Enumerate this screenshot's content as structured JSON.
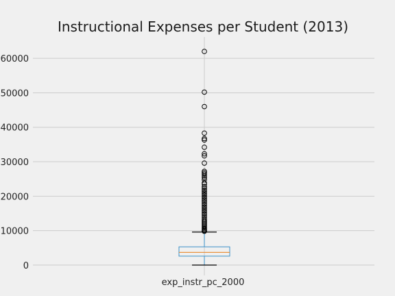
{
  "chart_data": {
    "type": "box",
    "title": "Instructional Expenses per Student (2013)",
    "categories": [
      "exp_instr_pc_2000"
    ],
    "ylim": [
      -3000,
      65000
    ],
    "yticks": [
      0,
      10000,
      20000,
      30000,
      40000,
      50000,
      60000
    ],
    "ytick_labels": [
      "0",
      "10000",
      "20000",
      "30000",
      "40000",
      "50000",
      "60000"
    ],
    "grid": true,
    "box": {
      "q1": 2600,
      "median": 3700,
      "q3": 5300,
      "whisker_low": 0,
      "whisker_high": 9600
    },
    "outliers": [
      62000,
      50200,
      46000,
      38300,
      36700,
      36300,
      34200,
      32300,
      31700,
      29600,
      27200,
      26800,
      26400,
      25900,
      25400,
      24800,
      23900,
      23500,
      22800,
      22300,
      21800,
      21300,
      20800,
      20300,
      19800,
      19300,
      18800,
      18300,
      17800,
      17300,
      16800,
      16300,
      15800,
      15300,
      14800,
      14300,
      13800,
      13300,
      12900,
      12500,
      12100,
      11700,
      11300,
      10900,
      10600,
      10300,
      10000,
      9800
    ],
    "colors": {
      "box": "#3a8fc7",
      "median": "#e8872a",
      "whisker": "#000000",
      "outlier_edge": "#000000"
    }
  }
}
